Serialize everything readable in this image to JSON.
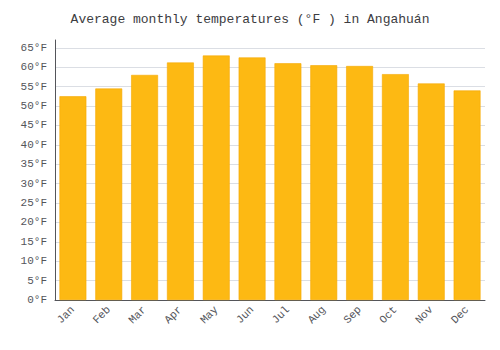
{
  "chart_data": {
    "type": "bar",
    "title": "Average monthly temperatures (°F ) in Angahuán",
    "categories": [
      "Jan",
      "Feb",
      "Mar",
      "Apr",
      "May",
      "Jun",
      "Jul",
      "Aug",
      "Sep",
      "Oct",
      "Nov",
      "Dec"
    ],
    "values": [
      52.5,
      54.5,
      58.0,
      61.2,
      63.0,
      62.5,
      61.0,
      60.5,
      60.3,
      58.2,
      55.8,
      54.0
    ],
    "color": "#FDB913",
    "ylim": [
      0,
      67
    ],
    "yticks": [
      {
        "value": 0,
        "label": "0°F"
      },
      {
        "value": 5,
        "label": "5°F"
      },
      {
        "value": 10,
        "label": "10°F"
      },
      {
        "value": 15,
        "label": "15°F"
      },
      {
        "value": 20,
        "label": "20°F"
      },
      {
        "value": 25,
        "label": "25°F"
      },
      {
        "value": 30,
        "label": "30°F"
      },
      {
        "value": 35,
        "label": "35°F"
      },
      {
        "value": 40,
        "label": "40°F"
      },
      {
        "value": 45,
        "label": "45°F"
      },
      {
        "value": 50,
        "label": "50°F"
      },
      {
        "value": 55,
        "label": "55°F"
      },
      {
        "value": 60,
        "label": "60°F"
      },
      {
        "value": 65,
        "label": "65°F"
      }
    ],
    "grid": true
  }
}
